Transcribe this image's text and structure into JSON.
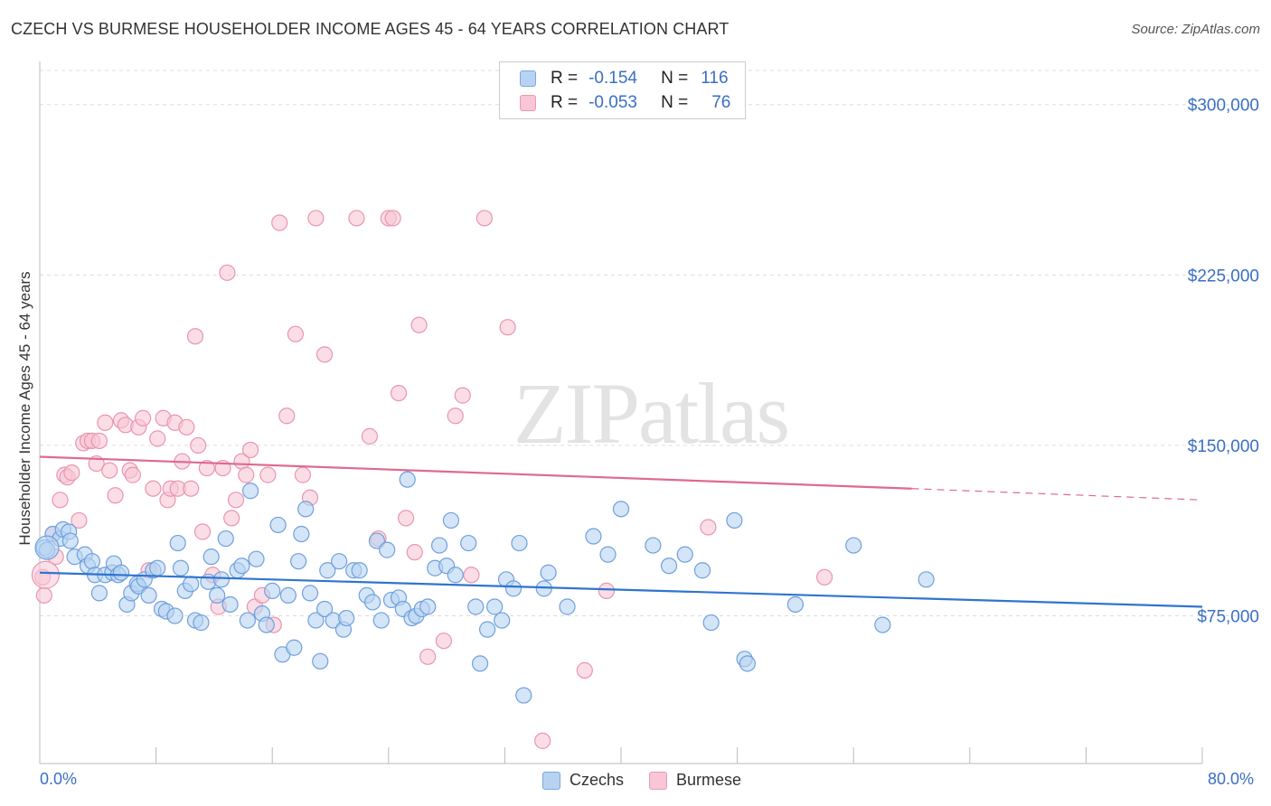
{
  "title": "CZECH VS BURMESE HOUSEHOLDER INCOME AGES 45 - 64 YEARS CORRELATION CHART",
  "source": "Source: ZipAtlas.com",
  "watermark": "ZIPatlas",
  "legend": {
    "czech": {
      "r_label": "R =",
      "r_value": "-0.154",
      "n_label": "N =",
      "n_value": "116"
    },
    "burmese": {
      "r_label": "R =",
      "r_value": "-0.053",
      "n_label": "N =",
      "n_value": "76"
    }
  },
  "bottom_legend": {
    "czech": "Czechs",
    "burmese": "Burmese"
  },
  "x_axis": {
    "min_label": "0.0%",
    "max_label": "80.0%"
  },
  "colors": {
    "czech_fill": "#b8d3f2",
    "czech_stroke": "#6fa0dc",
    "czech_line": "#2f74d0",
    "burmese_fill": "#f8c6d6",
    "burmese_stroke": "#e995b1",
    "burmese_line": "#e0698f",
    "tick_text": "#3a6fc4"
  },
  "chart_data": {
    "type": "scatter",
    "title": "CZECH VS BURMESE HOUSEHOLDER INCOME AGES 45 - 64 YEARS CORRELATION CHART",
    "xlabel": "",
    "ylabel": "Householder Income Ages 45 - 64 years",
    "xlim": [
      0,
      80
    ],
    "ylim": [
      10000,
      315000
    ],
    "yticks": [
      75000,
      150000,
      225000,
      300000
    ],
    "ytick_labels": [
      "$75,000",
      "$150,000",
      "$225,000",
      "$300,000"
    ],
    "grid": true,
    "legend_position": "top-center",
    "series": [
      {
        "name": "Czechs",
        "r": -0.154,
        "n": 116,
        "trend": {
          "x": [
            0,
            80
          ],
          "y": [
            94000,
            79000
          ]
        },
        "points": [
          [
            0.3,
            105000
          ],
          [
            0.5,
            104000
          ],
          [
            0.9,
            111000
          ],
          [
            1.4,
            109000
          ],
          [
            1.6,
            113000
          ],
          [
            2.0,
            112000
          ],
          [
            2.1,
            108000
          ],
          [
            2.4,
            101000
          ],
          [
            3.1,
            102000
          ],
          [
            3.3,
            97000
          ],
          [
            3.6,
            99000
          ],
          [
            3.8,
            93000
          ],
          [
            4.1,
            85000
          ],
          [
            4.5,
            93000
          ],
          [
            5.0,
            94000
          ],
          [
            5.1,
            98000
          ],
          [
            5.4,
            93000
          ],
          [
            5.6,
            94000
          ],
          [
            6.0,
            80000
          ],
          [
            6.3,
            85000
          ],
          [
            6.7,
            89000
          ],
          [
            6.8,
            88000
          ],
          [
            7.2,
            91000
          ],
          [
            7.5,
            84000
          ],
          [
            7.8,
            95000
          ],
          [
            8.1,
            96000
          ],
          [
            8.4,
            78000
          ],
          [
            8.7,
            77000
          ],
          [
            9.3,
            75000
          ],
          [
            9.5,
            107000
          ],
          [
            9.7,
            96000
          ],
          [
            10.0,
            86000
          ],
          [
            10.4,
            89000
          ],
          [
            10.7,
            73000
          ],
          [
            11.1,
            72000
          ],
          [
            11.6,
            90000
          ],
          [
            11.8,
            101000
          ],
          [
            12.2,
            84000
          ],
          [
            12.5,
            91000
          ],
          [
            12.8,
            109000
          ],
          [
            13.1,
            80000
          ],
          [
            13.6,
            95000
          ],
          [
            13.9,
            97000
          ],
          [
            14.3,
            73000
          ],
          [
            14.5,
            130000
          ],
          [
            14.9,
            100000
          ],
          [
            15.3,
            76000
          ],
          [
            15.6,
            71000
          ],
          [
            16.0,
            86000
          ],
          [
            16.4,
            115000
          ],
          [
            16.7,
            58000
          ],
          [
            17.1,
            84000
          ],
          [
            17.5,
            61000
          ],
          [
            17.8,
            99000
          ],
          [
            18.0,
            111000
          ],
          [
            18.3,
            122000
          ],
          [
            18.6,
            85000
          ],
          [
            19.0,
            73000
          ],
          [
            19.3,
            55000
          ],
          [
            19.6,
            78000
          ],
          [
            19.8,
            95000
          ],
          [
            20.2,
            73000
          ],
          [
            20.6,
            99000
          ],
          [
            20.9,
            69000
          ],
          [
            21.1,
            74000
          ],
          [
            21.6,
            95000
          ],
          [
            22.0,
            95000
          ],
          [
            22.5,
            84000
          ],
          [
            22.9,
            81000
          ],
          [
            23.2,
            108000
          ],
          [
            23.5,
            73000
          ],
          [
            23.9,
            104000
          ],
          [
            24.2,
            82000
          ],
          [
            24.7,
            83000
          ],
          [
            25.0,
            78000
          ],
          [
            25.3,
            135000
          ],
          [
            25.6,
            74000
          ],
          [
            25.9,
            75000
          ],
          [
            26.3,
            78000
          ],
          [
            26.7,
            79000
          ],
          [
            27.2,
            96000
          ],
          [
            27.5,
            106000
          ],
          [
            28.0,
            97000
          ],
          [
            28.3,
            117000
          ],
          [
            28.6,
            93000
          ],
          [
            29.5,
            107000
          ],
          [
            30.0,
            79000
          ],
          [
            30.3,
            54000
          ],
          [
            30.8,
            69000
          ],
          [
            31.3,
            79000
          ],
          [
            31.8,
            73000
          ],
          [
            32.1,
            91000
          ],
          [
            32.6,
            87000
          ],
          [
            33.0,
            107000
          ],
          [
            33.3,
            40000
          ],
          [
            34.7,
            87000
          ],
          [
            35.0,
            94000
          ],
          [
            36.3,
            79000
          ],
          [
            38.1,
            110000
          ],
          [
            39.1,
            102000
          ],
          [
            40.0,
            122000
          ],
          [
            42.2,
            106000
          ],
          [
            43.3,
            97000
          ],
          [
            44.4,
            102000
          ],
          [
            45.6,
            95000
          ],
          [
            46.2,
            72000
          ],
          [
            47.8,
            117000
          ],
          [
            48.5,
            56000
          ],
          [
            48.7,
            54000
          ],
          [
            52.0,
            80000
          ],
          [
            56.0,
            106000
          ],
          [
            58.0,
            71000
          ],
          [
            61.0,
            91000
          ]
        ]
      },
      {
        "name": "Burmese",
        "r": -0.053,
        "n": 76,
        "trend": {
          "x": [
            0,
            60
          ],
          "y": [
            145000,
            131000
          ]
        },
        "trend_dashed": {
          "x": [
            60,
            80
          ],
          "y": [
            131000,
            126000
          ]
        },
        "points": [
          [
            0.2,
            92000
          ],
          [
            0.3,
            84000
          ],
          [
            0.9,
            111000
          ],
          [
            1.1,
            101000
          ],
          [
            1.4,
            126000
          ],
          [
            1.7,
            137000
          ],
          [
            1.9,
            136000
          ],
          [
            2.2,
            138000
          ],
          [
            2.7,
            117000
          ],
          [
            3.0,
            151000
          ],
          [
            3.3,
            152000
          ],
          [
            3.6,
            152000
          ],
          [
            3.9,
            142000
          ],
          [
            4.1,
            152000
          ],
          [
            4.5,
            160000
          ],
          [
            4.8,
            139000
          ],
          [
            5.2,
            128000
          ],
          [
            5.6,
            161000
          ],
          [
            5.9,
            159000
          ],
          [
            6.2,
            139000
          ],
          [
            6.4,
            137000
          ],
          [
            6.8,
            158000
          ],
          [
            7.1,
            162000
          ],
          [
            7.5,
            95000
          ],
          [
            7.8,
            131000
          ],
          [
            8.1,
            153000
          ],
          [
            8.5,
            162000
          ],
          [
            8.8,
            126000
          ],
          [
            9.0,
            131000
          ],
          [
            9.3,
            160000
          ],
          [
            9.5,
            131000
          ],
          [
            9.8,
            143000
          ],
          [
            10.1,
            158000
          ],
          [
            10.4,
            131000
          ],
          [
            10.7,
            198000
          ],
          [
            10.9,
            150000
          ],
          [
            11.2,
            112000
          ],
          [
            11.5,
            140000
          ],
          [
            11.9,
            93000
          ],
          [
            12.3,
            79000
          ],
          [
            12.6,
            140000
          ],
          [
            12.9,
            226000
          ],
          [
            13.2,
            118000
          ],
          [
            13.5,
            126000
          ],
          [
            13.9,
            143000
          ],
          [
            14.2,
            137000
          ],
          [
            14.5,
            148000
          ],
          [
            14.8,
            79000
          ],
          [
            15.3,
            84000
          ],
          [
            15.7,
            137000
          ],
          [
            16.1,
            71000
          ],
          [
            16.5,
            248000
          ],
          [
            17.0,
            163000
          ],
          [
            17.6,
            199000
          ],
          [
            18.1,
            137000
          ],
          [
            18.6,
            127000
          ],
          [
            19.0,
            250000
          ],
          [
            19.6,
            190000
          ],
          [
            21.8,
            250000
          ],
          [
            22.7,
            154000
          ],
          [
            23.3,
            109000
          ],
          [
            24.0,
            250000
          ],
          [
            24.3,
            250000
          ],
          [
            24.7,
            173000
          ],
          [
            25.2,
            118000
          ],
          [
            25.8,
            103000
          ],
          [
            26.1,
            203000
          ],
          [
            26.7,
            57000
          ],
          [
            27.8,
            64000
          ],
          [
            28.6,
            163000
          ],
          [
            29.1,
            172000
          ],
          [
            29.7,
            93000
          ],
          [
            30.6,
            250000
          ],
          [
            32.2,
            202000
          ],
          [
            34.6,
            20000
          ],
          [
            37.5,
            51000
          ],
          [
            39.0,
            86000
          ],
          [
            46.0,
            114000
          ],
          [
            54.0,
            92000
          ]
        ]
      }
    ]
  }
}
